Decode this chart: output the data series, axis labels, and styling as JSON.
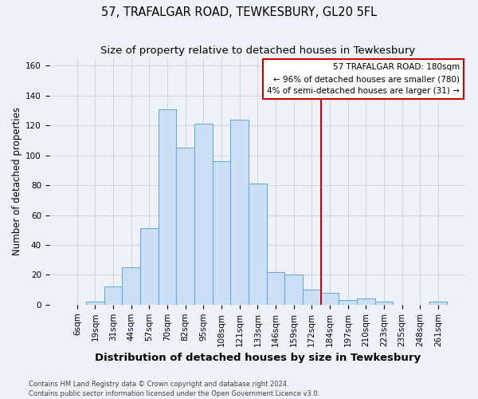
{
  "title": "57, TRAFALGAR ROAD, TEWKESBURY, GL20 5FL",
  "subtitle": "Size of property relative to detached houses in Tewkesbury",
  "xlabel": "Distribution of detached houses by size in Tewkesbury",
  "ylabel": "Number of detached properties",
  "bar_labels": [
    "6sqm",
    "19sqm",
    "31sqm",
    "44sqm",
    "57sqm",
    "70sqm",
    "82sqm",
    "95sqm",
    "108sqm",
    "121sqm",
    "133sqm",
    "146sqm",
    "159sqm",
    "172sqm",
    "184sqm",
    "197sqm",
    "210sqm",
    "223sqm",
    "235sqm",
    "248sqm",
    "261sqm"
  ],
  "bar_values": [
    0,
    2,
    12,
    25,
    51,
    131,
    105,
    121,
    96,
    124,
    81,
    22,
    20,
    10,
    8,
    3,
    4,
    2,
    0,
    0,
    2
  ],
  "bar_color": "#cce0f5",
  "bar_edge_color": "#6aaad4",
  "vline_index": 14,
  "vline_color": "#cc0000",
  "ylim": [
    0,
    165
  ],
  "yticks": [
    0,
    20,
    40,
    60,
    80,
    100,
    120,
    140,
    160
  ],
  "annotation_title": "57 TRAFALGAR ROAD: 180sqm",
  "annotation_line1": "← 96% of detached houses are smaller (780)",
  "annotation_line2": "4% of semi-detached houses are larger (31) →",
  "annotation_box_color": "#cc0000",
  "footer_line1": "Contains HM Land Registry data © Crown copyright and database right 2024.",
  "footer_line2": "Contains public sector information licensed under the Open Government Licence v3.0.",
  "bg_color": "#eef2f8",
  "grid_color": "#d0d0d0",
  "title_fontsize": 10.5,
  "subtitle_fontsize": 9.5,
  "xlabel_fontsize": 9.5,
  "ylabel_fontsize": 8.5,
  "tick_fontsize": 7.5,
  "footer_fontsize": 6.0
}
